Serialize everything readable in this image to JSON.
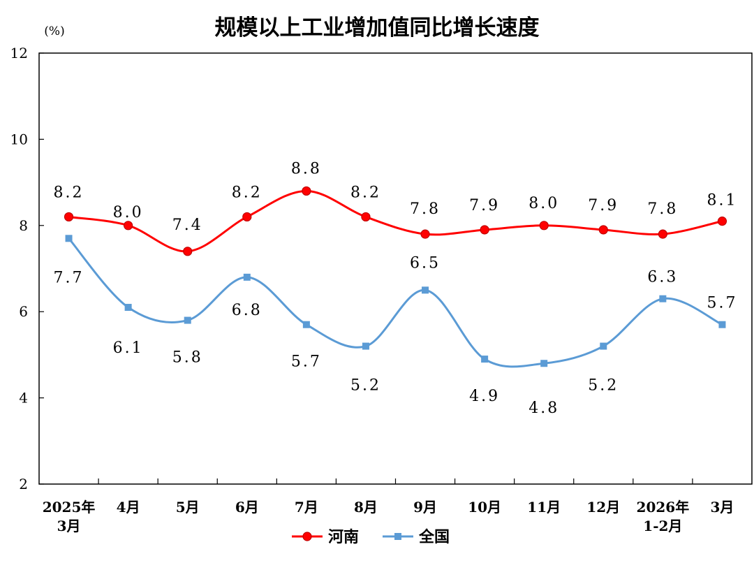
{
  "chart_data": {
    "type": "line",
    "title": "规模以上工业增加值同比增长速度",
    "ylabel": "(%)",
    "xlabel": "",
    "ylim": [
      2,
      12
    ],
    "yticks": [
      "2",
      "4",
      "6",
      "8",
      "10",
      "12"
    ],
    "categories": [
      [
        "2025年",
        "3月"
      ],
      [
        "4月"
      ],
      [
        "5月"
      ],
      [
        "6月"
      ],
      [
        "7月"
      ],
      [
        "8月"
      ],
      [
        "9月"
      ],
      [
        "10月"
      ],
      [
        "11月"
      ],
      [
        "12月"
      ],
      [
        "2026年",
        "1-2月"
      ],
      [
        "3月"
      ]
    ],
    "grid": false,
    "legend": "bottom",
    "series": [
      {
        "name": "河南",
        "color": "#ff0000",
        "marker": "circle",
        "values": [
          8.2,
          8.0,
          7.4,
          8.2,
          8.8,
          8.2,
          7.8,
          7.9,
          8.0,
          7.9,
          7.8,
          8.1
        ]
      },
      {
        "name": "全国",
        "color": "#5b9bd5",
        "marker": "square",
        "values": [
          7.7,
          6.1,
          5.8,
          6.8,
          5.7,
          5.2,
          6.5,
          4.9,
          4.8,
          5.2,
          6.3,
          5.7
        ]
      }
    ]
  }
}
